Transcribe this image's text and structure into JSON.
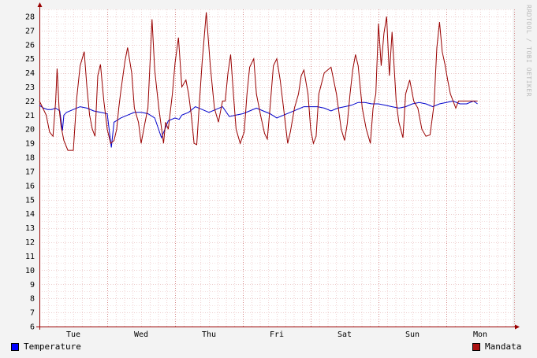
{
  "chart_data": {
    "type": "line",
    "x_labels": [
      "Tue",
      "Wed",
      "Thu",
      "Fri",
      "Sat",
      "Sun",
      "Mon"
    ],
    "ylim": [
      6,
      28.5
    ],
    "y_ticks": [
      6,
      7,
      8,
      9,
      10,
      11,
      12,
      13,
      14,
      15,
      16,
      17,
      18,
      19,
      20,
      21,
      22,
      23,
      24,
      25,
      26,
      27,
      28
    ],
    "grid": true,
    "legend_placement": "bottom",
    "watermark": "RRDTOOL / TOBI OETIKER",
    "colors": {
      "temperature": "#0000cc",
      "mandata": "#990000",
      "grid_minor": "#e8a8a8",
      "axis": "#990000"
    },
    "series": [
      {
        "name": "Temperature",
        "x": [
          0.0,
          0.06,
          0.12,
          0.18,
          0.24,
          0.3,
          0.34,
          0.36,
          0.4,
          0.5,
          0.6,
          0.7,
          0.8,
          0.9,
          1.0,
          1.06,
          1.1,
          1.2,
          1.3,
          1.4,
          1.5,
          1.6,
          1.7,
          1.8,
          1.9,
          2.0,
          2.06,
          2.1,
          2.2,
          2.3,
          2.4,
          2.5,
          2.6,
          2.7,
          2.8,
          2.9,
          3.0,
          3.1,
          3.2,
          3.3,
          3.4,
          3.5,
          3.6,
          3.7,
          3.8,
          3.9,
          4.0,
          4.1,
          4.2,
          4.3,
          4.4,
          4.5,
          4.6,
          4.7,
          4.8,
          4.9,
          5.0,
          5.1,
          5.2,
          5.3,
          5.4,
          5.5,
          5.6,
          5.7,
          5.8,
          5.9,
          6.0,
          6.1,
          6.2,
          6.3,
          6.4,
          6.46
        ],
        "values": [
          21.7,
          21.5,
          21.4,
          21.4,
          21.5,
          21.3,
          19.9,
          21.0,
          21.2,
          21.4,
          21.6,
          21.5,
          21.3,
          21.2,
          21.1,
          18.7,
          20.5,
          20.8,
          21.0,
          21.2,
          21.2,
          21.1,
          20.8,
          19.4,
          20.6,
          20.8,
          20.7,
          21.0,
          21.2,
          21.6,
          21.4,
          21.2,
          21.4,
          21.6,
          20.9,
          21.0,
          21.1,
          21.3,
          21.5,
          21.3,
          21.1,
          20.8,
          21.0,
          21.2,
          21.4,
          21.6,
          21.6,
          21.6,
          21.5,
          21.3,
          21.5,
          21.6,
          21.7,
          21.9,
          21.9,
          21.8,
          21.8,
          21.7,
          21.6,
          21.5,
          21.6,
          21.8,
          21.9,
          21.8,
          21.6,
          21.8,
          21.9,
          22.0,
          21.8,
          21.8,
          22.0,
          21.8
        ]
      },
      {
        "name": "Mandata",
        "x": [
          0.0,
          0.1,
          0.15,
          0.2,
          0.24,
          0.26,
          0.27,
          0.29,
          0.32,
          0.36,
          0.42,
          0.5,
          0.55,
          0.6,
          0.66,
          0.7,
          0.74,
          0.78,
          0.82,
          0.86,
          0.9,
          0.95,
          1.0,
          1.05,
          1.1,
          1.14,
          1.17,
          1.2,
          1.26,
          1.3,
          1.36,
          1.4,
          1.46,
          1.5,
          1.55,
          1.6,
          1.66,
          1.7,
          1.76,
          1.83,
          1.86,
          1.9,
          1.96,
          2.0,
          2.05,
          2.1,
          2.16,
          2.2,
          2.24,
          2.28,
          2.32,
          2.36,
          2.4,
          2.46,
          2.52,
          2.58,
          2.64,
          2.7,
          2.74,
          2.78,
          2.82,
          2.86,
          2.9,
          2.96,
          3.02,
          3.06,
          3.1,
          3.16,
          3.2,
          3.26,
          3.32,
          3.36,
          3.4,
          3.45,
          3.5,
          3.55,
          3.6,
          3.66,
          3.7,
          3.76,
          3.82,
          3.86,
          3.9,
          3.96,
          4.0,
          4.04,
          4.08,
          4.12,
          4.2,
          4.3,
          4.38,
          4.45,
          4.5,
          4.54,
          4.58,
          4.62,
          4.66,
          4.7,
          4.76,
          4.82,
          4.88,
          4.92,
          4.96,
          5.0,
          5.04,
          5.08,
          5.12,
          5.16,
          5.2,
          5.26,
          5.3,
          5.36,
          5.4,
          5.46,
          5.52,
          5.58,
          5.64,
          5.7,
          5.76,
          5.82,
          5.86,
          5.9,
          5.94,
          5.98,
          6.02,
          6.06,
          6.1,
          6.14,
          6.18,
          6.22,
          6.26,
          6.3,
          6.34,
          6.38,
          6.42,
          6.46
        ],
        "values": [
          22.0,
          21.0,
          19.8,
          19.5,
          22.0,
          24.3,
          23.5,
          21.5,
          20.2,
          19.2,
          18.5,
          18.5,
          22.2,
          24.5,
          25.5,
          23.0,
          21.0,
          20.0,
          19.5,
          23.8,
          24.6,
          22.0,
          20.0,
          19.0,
          19.2,
          20.0,
          21.5,
          22.7,
          24.8,
          25.8,
          24.0,
          21.5,
          20.5,
          19.0,
          20.3,
          21.5,
          27.8,
          24.2,
          21.5,
          19.0,
          20.5,
          20.0,
          22.5,
          24.7,
          26.5,
          23.0,
          23.5,
          22.5,
          21.0,
          19.0,
          18.9,
          22.0,
          24.8,
          28.3,
          24.5,
          21.5,
          20.5,
          22.0,
          22.0,
          24.0,
          25.3,
          22.5,
          20.0,
          19.0,
          19.8,
          22.5,
          24.4,
          25.0,
          22.5,
          21.0,
          19.7,
          19.3,
          21.5,
          24.5,
          25.0,
          23.5,
          21.5,
          19.0,
          19.8,
          21.5,
          22.5,
          23.8,
          24.2,
          22.5,
          20.0,
          19.0,
          19.5,
          22.5,
          24.0,
          24.4,
          22.5,
          20.0,
          19.2,
          20.4,
          22.5,
          24.2,
          25.3,
          24.5,
          21.5,
          20.0,
          19.0,
          21.5,
          22.5,
          27.5,
          24.5,
          26.8,
          28.0,
          23.8,
          26.9,
          22.0,
          20.5,
          19.4,
          22.5,
          23.5,
          22.0,
          21.5,
          20.0,
          19.5,
          19.6,
          21.8,
          25.8,
          27.6,
          25.5,
          24.6,
          23.5,
          22.5,
          22.0,
          21.5,
          22.0,
          22.0,
          22.0,
          22.0,
          22.0,
          22.0,
          22.0,
          22.0
        ]
      }
    ],
    "legend": {
      "left": "Temperature",
      "right": "Mandata"
    }
  }
}
